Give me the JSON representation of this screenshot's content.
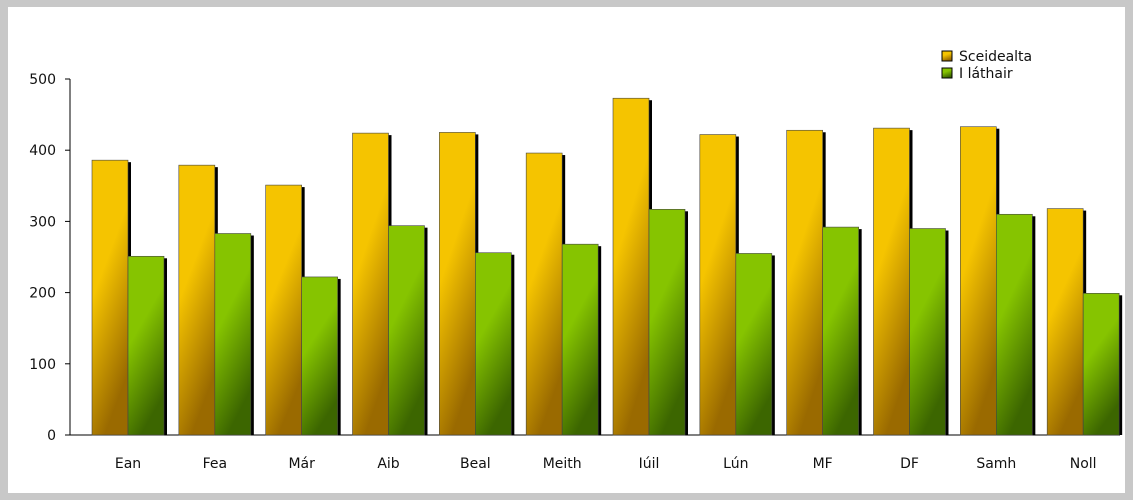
{
  "chart_data": {
    "type": "bar",
    "categories": [
      "Ean",
      "Fea",
      "Már",
      "Aib",
      "Beal",
      "Meith",
      "Iúil",
      "Lún",
      "MF",
      "DF",
      "Samh",
      "Noll"
    ],
    "series": [
      {
        "name": "Sceidealta",
        "values": [
          386,
          379,
          351,
          424,
          425,
          396,
          473,
          422,
          428,
          431,
          433,
          318
        ]
      },
      {
        "name": "I láthair",
        "values": [
          251,
          283,
          222,
          294,
          256,
          268,
          317,
          255,
          292,
          290,
          310,
          199
        ]
      }
    ],
    "ylim": [
      0,
      500
    ],
    "yticks": [
      0,
      100,
      200,
      300,
      400,
      500
    ],
    "grid": false,
    "legend_position": "top-right",
    "colors": {
      "series": [
        "#f5c400",
        "#86c400"
      ],
      "series_dark": [
        "#9a6a00",
        "#3c6600"
      ],
      "shadow": "#000000",
      "frame": "#c8c8c8"
    }
  }
}
